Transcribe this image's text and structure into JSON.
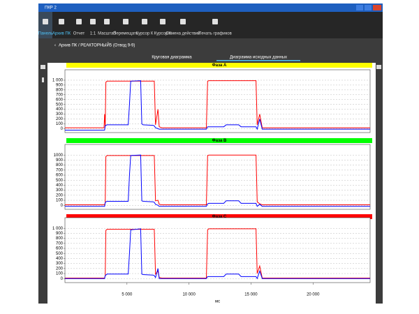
{
  "window": {
    "title": "ПКР 2"
  },
  "toolbar": {
    "items": [
      "Панель",
      "Архив ПК",
      "Отчет",
      "1:1",
      "Масштаб",
      "Перемещать",
      "Курсор К",
      "Курсор К",
      "Отмена действий",
      "Печать графиков"
    ]
  },
  "breadcrumb": "Архив ПК / РЕАКТОРНЫЙ5 (Отвод 9-9)",
  "tabs": [
    "Круговая диаграмма",
    "Диаграмма исходных данных"
  ],
  "chart_data": [
    {
      "type": "line",
      "title": "Фаза А",
      "title_color": "#ffff00",
      "x": [
        0,
        3150,
        3200,
        3250,
        3300,
        3400,
        5100,
        5200,
        5300,
        6100,
        6200,
        6300,
        7100,
        7200,
        7300,
        7500,
        7600,
        7800,
        11400,
        11500,
        11600,
        12800,
        13000,
        14000,
        14200,
        15300,
        15400,
        15500,
        15700,
        15900,
        24600
      ],
      "series": [
        {
          "name": "red",
          "color": "#ff0000",
          "values": [
            20,
            20,
            300,
            50,
            960,
            980,
            980,
            980,
            980,
            980,
            980,
            980,
            980,
            980,
            80,
            400,
            40,
            20,
            20,
            980,
            990,
            990,
            990,
            990,
            990,
            990,
            990,
            80,
            300,
            20,
            20
          ]
        },
        {
          "name": "blue",
          "color": "#0000ff",
          "values": [
            -30,
            -30,
            -30,
            60,
            70,
            80,
            80,
            500,
            980,
            990,
            100,
            80,
            70,
            60,
            20,
            0,
            -10,
            -10,
            -10,
            40,
            40,
            40,
            80,
            80,
            40,
            40,
            40,
            -10,
            200,
            -10,
            -10
          ]
        }
      ],
      "xlim": [
        0,
        24600
      ],
      "ylim": [
        -80,
        1100
      ],
      "yticks": [
        0,
        100,
        200,
        300,
        400,
        500,
        600,
        700,
        800,
        900,
        {
          "value": 1000,
          "label": "1 000"
        }
      ],
      "grid": true
    },
    {
      "type": "line",
      "title": "Фаза В",
      "title_color": "#00ff00",
      "x": [
        0,
        3150,
        3200,
        3250,
        3300,
        3400,
        5100,
        5200,
        5300,
        6100,
        6200,
        6300,
        7100,
        7200,
        7300,
        7500,
        7600,
        7800,
        11400,
        11500,
        11600,
        12800,
        13000,
        14000,
        14200,
        15300,
        15400,
        15500,
        15700,
        15900,
        24600
      ],
      "series": [
        {
          "name": "red",
          "color": "#ff0000",
          "values": [
            10,
            10,
            10,
            60,
            970,
            990,
            990,
            990,
            990,
            990,
            990,
            990,
            990,
            990,
            90,
            100,
            20,
            10,
            10,
            990,
            1000,
            1000,
            1000,
            1000,
            1000,
            1000,
            1000,
            70,
            30,
            10,
            10
          ]
        },
        {
          "name": "blue",
          "color": "#0000ff",
          "values": [
            -20,
            -20,
            -20,
            50,
            70,
            80,
            80,
            600,
            990,
            1000,
            90,
            80,
            70,
            60,
            20,
            0,
            -20,
            -20,
            -20,
            30,
            40,
            40,
            90,
            90,
            40,
            40,
            40,
            -20,
            20,
            -20,
            -20
          ]
        }
      ],
      "xlim": [
        0,
        24600
      ],
      "ylim": [
        -80,
        1100
      ],
      "yticks": [
        0,
        100,
        200,
        300,
        400,
        500,
        600,
        700,
        800,
        900,
        1000
      ],
      "grid": true
    },
    {
      "type": "line",
      "title": "Фаза С",
      "title_color": "#ff0000",
      "x": [
        0,
        3150,
        3200,
        3250,
        3300,
        3400,
        5100,
        5200,
        5300,
        6100,
        6200,
        6300,
        7100,
        7200,
        7300,
        7500,
        7600,
        7800,
        11400,
        11500,
        11600,
        12800,
        13000,
        14000,
        14200,
        15300,
        15400,
        15500,
        15700,
        15900,
        24600
      ],
      "series": [
        {
          "name": "red",
          "color": "#ff0000",
          "values": [
            10,
            10,
            10,
            60,
            960,
            980,
            980,
            980,
            980,
            980,
            980,
            980,
            980,
            980,
            90,
            150,
            20,
            10,
            10,
            970,
            990,
            990,
            990,
            990,
            990,
            990,
            990,
            100,
            250,
            10,
            10
          ]
        },
        {
          "name": "blue",
          "color": "#0000ff",
          "values": [
            0,
            0,
            0,
            60,
            70,
            90,
            90,
            500,
            970,
            990,
            90,
            80,
            70,
            60,
            20,
            200,
            0,
            0,
            0,
            40,
            40,
            40,
            90,
            90,
            40,
            40,
            40,
            0,
            150,
            0,
            0
          ]
        }
      ],
      "xlim": [
        0,
        24600
      ],
      "ylim": [
        -80,
        1100
      ],
      "xticks": [
        {
          "value": 5000,
          "label": "5 000"
        },
        {
          "value": 10000,
          "label": "10 000"
        },
        {
          "value": 15000,
          "label": "15 000"
        },
        {
          "value": 20000,
          "label": "20 000"
        }
      ],
      "xlabel": "мс",
      "yticks": [
        0,
        100,
        200,
        300,
        400,
        500,
        600,
        700,
        800,
        900,
        {
          "value": 1000,
          "label": "1 000"
        }
      ],
      "grid": true
    }
  ]
}
